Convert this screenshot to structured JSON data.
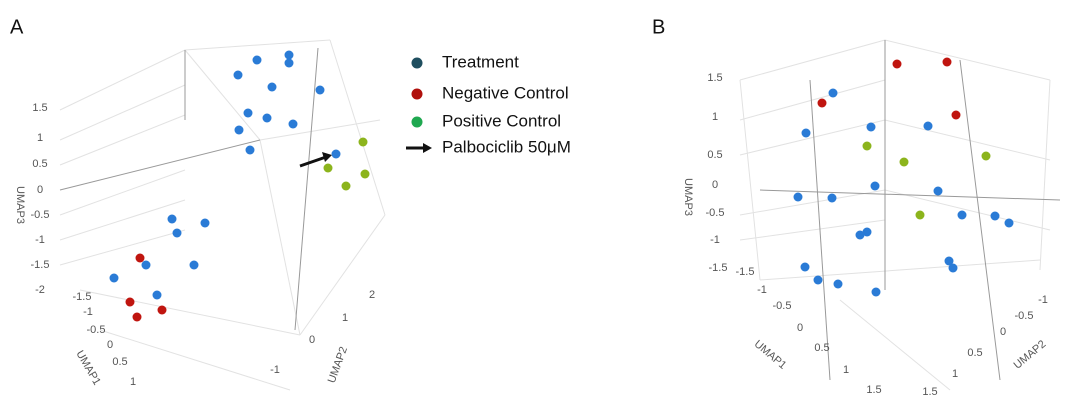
{
  "panels": [
    {
      "label": "A",
      "axis_x": "UMAP1",
      "axis_y": "UMAP2",
      "axis_z": "UMAP3",
      "ticks_z": [
        "1.5",
        "1",
        "0.5",
        "0",
        "-0.5",
        "-1",
        "-1.5",
        "-2"
      ],
      "ticks_x": [
        "-1.5",
        "-1",
        "-0.5",
        "0",
        "0.5",
        "1"
      ],
      "ticks_y": [
        "2",
        "1",
        "0",
        "-1"
      ]
    },
    {
      "label": "B",
      "axis_x": "UMAP1",
      "axis_y": "UMAP2",
      "axis_z": "UMAP3",
      "ticks_z": [
        "1.5",
        "1",
        "0.5",
        "0",
        "-0.5",
        "-1",
        "-1.5"
      ],
      "ticks_x": [
        "-1.5",
        "-1",
        "-0.5",
        "0",
        "0.5",
        "1",
        "1.5"
      ],
      "ticks_y": [
        "-1",
        "-0.5",
        "0",
        "0.5",
        "1",
        "1.5"
      ]
    }
  ],
  "legend": [
    {
      "name": "Treatment",
      "color": "#1f4e5f"
    },
    {
      "name": "Negative Control",
      "color": "#b0100c"
    },
    {
      "name": "Positive Control",
      "color": "#1fa850"
    },
    {
      "name": "Palbociclib 50μM"
    }
  ]
}
